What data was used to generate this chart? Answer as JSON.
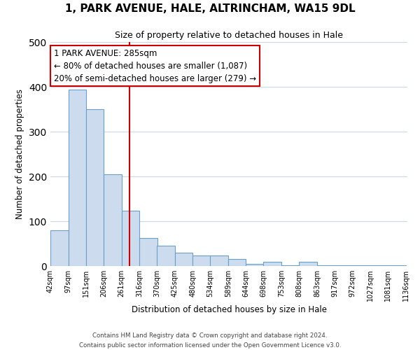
{
  "title": "1, PARK AVENUE, HALE, ALTRINCHAM, WA15 9DL",
  "subtitle": "Size of property relative to detached houses in Hale",
  "xlabel": "Distribution of detached houses by size in Hale",
  "ylabel": "Number of detached properties",
  "bar_left_edges": [
    42,
    97,
    151,
    206,
    261,
    316,
    370,
    425,
    480,
    534,
    589,
    644,
    698,
    753,
    808,
    863,
    917,
    972,
    1027,
    1081
  ],
  "bar_heights": [
    80,
    393,
    350,
    205,
    123,
    63,
    45,
    30,
    24,
    24,
    16,
    5,
    9,
    2,
    9,
    2,
    2,
    2,
    1,
    1
  ],
  "bin_width": 55,
  "tick_labels": [
    "42sqm",
    "97sqm",
    "151sqm",
    "206sqm",
    "261sqm",
    "316sqm",
    "370sqm",
    "425sqm",
    "480sqm",
    "534sqm",
    "589sqm",
    "644sqm",
    "698sqm",
    "753sqm",
    "808sqm",
    "863sqm",
    "917sqm",
    "972sqm",
    "1027sqm",
    "1081sqm",
    "1136sqm"
  ],
  "bar_color": "#ccdcee",
  "bar_edge_color": "#6aa0c8",
  "vline_x": 285,
  "vline_color": "#cc0000",
  "annotation_text_line1": "1 PARK AVENUE: 285sqm",
  "annotation_text_line2": "← 80% of detached houses are smaller (1,087)",
  "annotation_text_line3": "20% of semi-detached houses are larger (279) →",
  "ylim": [
    0,
    500
  ],
  "xlim_left": 42,
  "xlim_right": 1141,
  "footer_line1": "Contains HM Land Registry data © Crown copyright and database right 2024.",
  "footer_line2": "Contains public sector information licensed under the Open Government Licence v3.0.",
  "bg_color": "#ffffff",
  "plot_bg_color": "#ffffff",
  "grid_color": "#c8d8e8",
  "title_fontsize": 11,
  "subtitle_fontsize": 9,
  "label_fontsize": 8.5,
  "tick_fontsize": 7,
  "annotation_fontsize": 8.5,
  "vline_box_color": "#cc0000"
}
